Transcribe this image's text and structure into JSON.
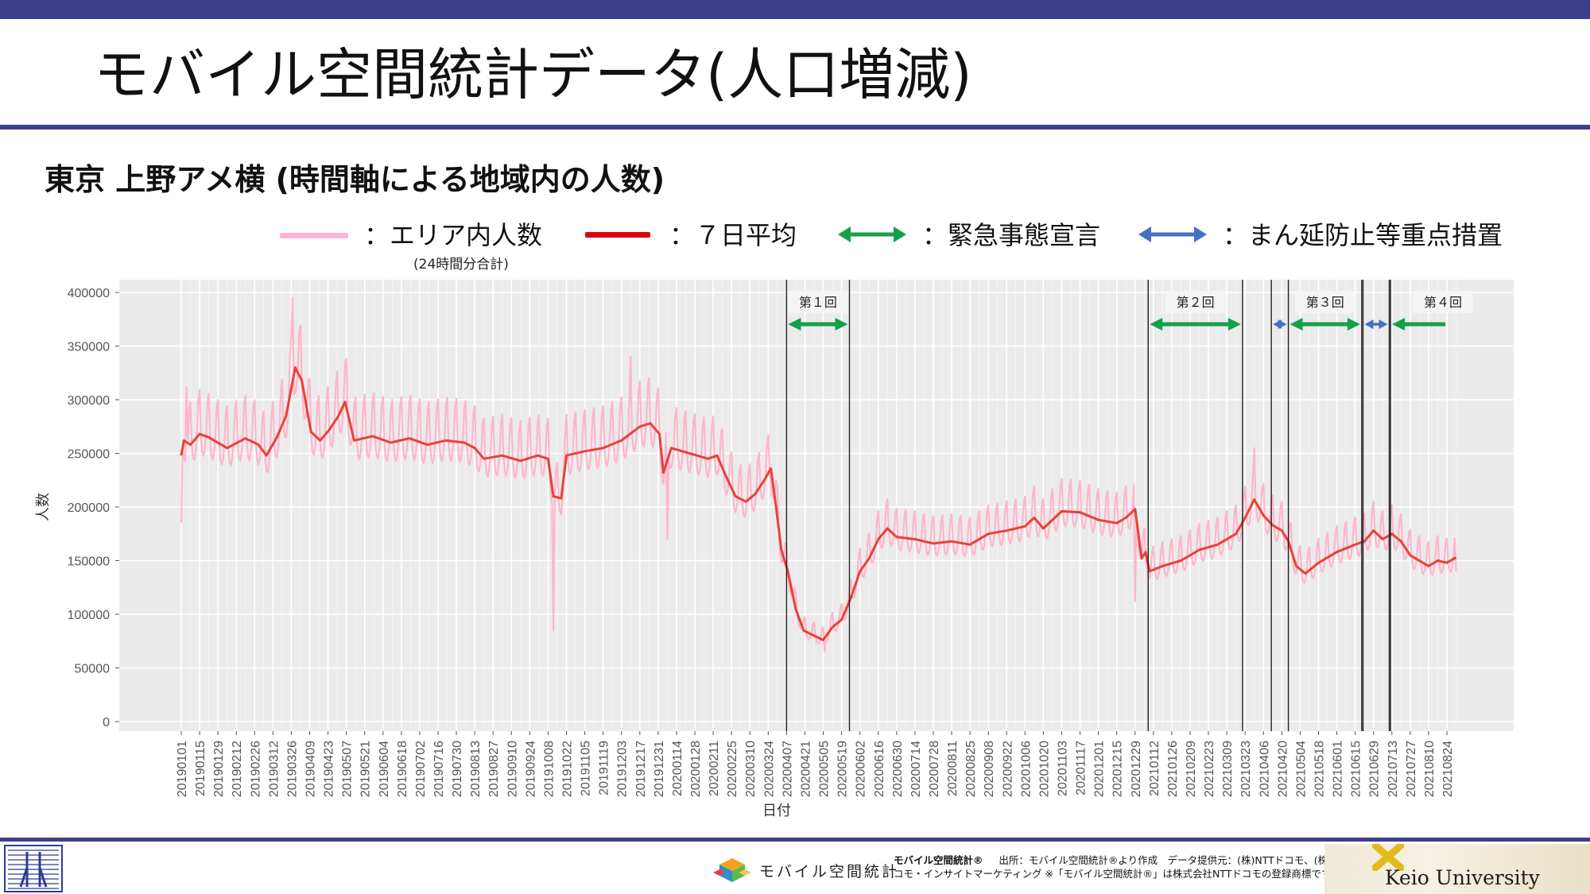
{
  "title": "モバイル空間統計データ(人口増減)",
  "subtitle": "東京 上野アメ横 (時間軸による地域内の人数)",
  "legend": {
    "daily": "：エリア内人数",
    "daily_note": "(24時間分合計)",
    "avg": "：７日平均",
    "emergency": "：緊急事態宣言",
    "semi": "：まん延防止等重点措置"
  },
  "colors": {
    "daily": "#ffb3c8",
    "avg": "#e8413a",
    "emergency": "#14a04a",
    "semi": "#4472c4",
    "panel": "#ebebeb",
    "brand": "#3e3f8a"
  },
  "footer": {
    "brand_text": "モバイル空間統計",
    "note_bold": "モバイル空間統計®",
    "note_line1": "出所：モバイル空間統計®より作成　データ提供元：(株)NTTドコモ、(株)ド",
    "note_line2": "コモ・インサイトマーケティング ※「モバイル空間統計®」は株式会社NTTドコモの登録商標です。",
    "university": "Keio University"
  },
  "chart_data": {
    "type": "line",
    "xlabel": "日付",
    "ylabel": "人数",
    "ylim": [
      0,
      400000
    ],
    "yticks": [
      0,
      50000,
      100000,
      150000,
      200000,
      250000,
      300000,
      350000,
      400000
    ],
    "x_start": "2019-01-01",
    "x_end": "2021-09-01",
    "xticks": [
      "20190101",
      "20190115",
      "20190129",
      "20190212",
      "20190226",
      "20190312",
      "20190326",
      "20190409",
      "20190423",
      "20190507",
      "20190521",
      "20190604",
      "20190618",
      "20190702",
      "20190716",
      "20190730",
      "20190813",
      "20190827",
      "20190910",
      "20190924",
      "20191008",
      "20191022",
      "20191105",
      "20191119",
      "20191203",
      "20191217",
      "20191231",
      "20200114",
      "20200128",
      "20200211",
      "20200225",
      "20200310",
      "20200324",
      "20200407",
      "20200421",
      "20200505",
      "20200519",
      "20200602",
      "20200616",
      "20200630",
      "20200714",
      "20200728",
      "20200811",
      "20200825",
      "20200908",
      "20200922",
      "20201006",
      "20201020",
      "20201103",
      "20201117",
      "20201201",
      "20201215",
      "20201229",
      "20210112",
      "20210126",
      "20210209",
      "20210223",
      "20210309",
      "20210323",
      "20210406",
      "20210420",
      "20210504",
      "20210518",
      "20210601",
      "20210615",
      "20210629",
      "20210713",
      "20210727",
      "20210810",
      "20210824"
    ],
    "grid": true,
    "series": [
      {
        "name": "エリア内人数",
        "style": "daily",
        "values_note": "daily values, weekly cycle approx. avg ±25000",
        "points": [
          [
            "2019-01-01",
            185000
          ],
          [
            "2019-01-05",
            312000
          ],
          [
            "2019-03-27",
            395000
          ],
          [
            "2019-10-12",
            85000
          ],
          [
            "2019-12-10",
            340000
          ],
          [
            "2020-01-07",
            170000
          ],
          [
            "2020-05-06",
            65000
          ],
          [
            "2020-12-29",
            112000
          ],
          [
            "2021-03-30",
            255000
          ],
          [
            "2021-08-31",
            140000
          ]
        ]
      },
      {
        "name": "7日平均",
        "style": "avg",
        "points": [
          [
            "2019-01-01",
            248000
          ],
          [
            "2019-01-03",
            262000
          ],
          [
            "2019-01-08",
            258000
          ],
          [
            "2019-01-15",
            268000
          ],
          [
            "2019-01-22",
            265000
          ],
          [
            "2019-02-05",
            255000
          ],
          [
            "2019-02-19",
            264000
          ],
          [
            "2019-03-01",
            258000
          ],
          [
            "2019-03-07",
            248000
          ],
          [
            "2019-03-15",
            265000
          ],
          [
            "2019-03-22",
            285000
          ],
          [
            "2019-03-29",
            330000
          ],
          [
            "2019-04-03",
            318000
          ],
          [
            "2019-04-10",
            270000
          ],
          [
            "2019-04-17",
            262000
          ],
          [
            "2019-04-24",
            272000
          ],
          [
            "2019-05-01",
            285000
          ],
          [
            "2019-05-06",
            298000
          ],
          [
            "2019-05-13",
            262000
          ],
          [
            "2019-05-27",
            266000
          ],
          [
            "2019-06-10",
            260000
          ],
          [
            "2019-06-24",
            264000
          ],
          [
            "2019-07-08",
            258000
          ],
          [
            "2019-07-22",
            262000
          ],
          [
            "2019-08-05",
            260000
          ],
          [
            "2019-08-13",
            255000
          ],
          [
            "2019-08-20",
            245000
          ],
          [
            "2019-09-03",
            248000
          ],
          [
            "2019-09-17",
            243000
          ],
          [
            "2019-09-30",
            248000
          ],
          [
            "2019-10-08",
            245000
          ],
          [
            "2019-10-12",
            210000
          ],
          [
            "2019-10-18",
            208000
          ],
          [
            "2019-10-22",
            248000
          ],
          [
            "2019-11-05",
            252000
          ],
          [
            "2019-11-19",
            255000
          ],
          [
            "2019-12-03",
            262000
          ],
          [
            "2019-12-17",
            275000
          ],
          [
            "2019-12-25",
            278000
          ],
          [
            "2020-01-01",
            268000
          ],
          [
            "2020-01-04",
            232000
          ],
          [
            "2020-01-10",
            255000
          ],
          [
            "2020-01-24",
            250000
          ],
          [
            "2020-02-07",
            245000
          ],
          [
            "2020-02-14",
            248000
          ],
          [
            "2020-02-21",
            228000
          ],
          [
            "2020-02-28",
            210000
          ],
          [
            "2020-03-07",
            205000
          ],
          [
            "2020-03-14",
            212000
          ],
          [
            "2020-03-21",
            225000
          ],
          [
            "2020-03-26",
            236000
          ],
          [
            "2020-03-30",
            200000
          ],
          [
            "2020-04-03",
            160000
          ],
          [
            "2020-04-08",
            140000
          ],
          [
            "2020-04-14",
            105000
          ],
          [
            "2020-04-20",
            85000
          ],
          [
            "2020-04-28",
            80000
          ],
          [
            "2020-05-05",
            76000
          ],
          [
            "2020-05-12",
            88000
          ],
          [
            "2020-05-19",
            95000
          ],
          [
            "2020-05-26",
            115000
          ],
          [
            "2020-06-02",
            140000
          ],
          [
            "2020-06-09",
            152000
          ],
          [
            "2020-06-16",
            170000
          ],
          [
            "2020-06-23",
            180000
          ],
          [
            "2020-06-30",
            172000
          ],
          [
            "2020-07-14",
            170000
          ],
          [
            "2020-07-28",
            166000
          ],
          [
            "2020-08-11",
            168000
          ],
          [
            "2020-08-25",
            165000
          ],
          [
            "2020-09-08",
            175000
          ],
          [
            "2020-09-22",
            178000
          ],
          [
            "2020-10-06",
            182000
          ],
          [
            "2020-10-13",
            190000
          ],
          [
            "2020-10-20",
            180000
          ],
          [
            "2020-11-03",
            196000
          ],
          [
            "2020-11-17",
            195000
          ],
          [
            "2020-12-01",
            188000
          ],
          [
            "2020-12-15",
            185000
          ],
          [
            "2020-12-22",
            190000
          ],
          [
            "2020-12-29",
            198000
          ],
          [
            "2021-01-03",
            152000
          ],
          [
            "2021-01-06",
            158000
          ],
          [
            "2021-01-09",
            140000
          ],
          [
            "2021-01-19",
            145000
          ],
          [
            "2021-02-02",
            150000
          ],
          [
            "2021-02-16",
            160000
          ],
          [
            "2021-03-02",
            165000
          ],
          [
            "2021-03-16",
            175000
          ],
          [
            "2021-03-23",
            190000
          ],
          [
            "2021-03-30",
            207000
          ],
          [
            "2021-04-06",
            192000
          ],
          [
            "2021-04-13",
            183000
          ],
          [
            "2021-04-20",
            178000
          ],
          [
            "2021-04-25",
            168000
          ],
          [
            "2021-05-01",
            145000
          ],
          [
            "2021-05-08",
            138000
          ],
          [
            "2021-05-18",
            148000
          ],
          [
            "2021-06-01",
            158000
          ],
          [
            "2021-06-15",
            165000
          ],
          [
            "2021-06-22",
            168000
          ],
          [
            "2021-06-29",
            178000
          ],
          [
            "2021-07-06",
            170000
          ],
          [
            "2021-07-13",
            175000
          ],
          [
            "2021-07-20",
            168000
          ],
          [
            "2021-07-27",
            155000
          ],
          [
            "2021-08-10",
            145000
          ],
          [
            "2021-08-17",
            150000
          ],
          [
            "2021-08-24",
            148000
          ],
          [
            "2021-08-31",
            153000
          ]
        ]
      }
    ],
    "events": [
      {
        "label": "第１回",
        "kind": "emergency",
        "start": "2020-04-07",
        "end": "2020-05-25"
      },
      {
        "label": "第２回",
        "kind": "emergency",
        "start": "2021-01-08",
        "end": "2021-03-21"
      },
      {
        "label": "",
        "kind": "semi",
        "start": "2021-04-12",
        "end": "2021-04-25"
      },
      {
        "label": "第３回",
        "kind": "emergency",
        "start": "2021-04-25",
        "end": "2021-06-20"
      },
      {
        "label": "",
        "kind": "semi",
        "start": "2021-06-21",
        "end": "2021-07-11"
      },
      {
        "label": "第４回",
        "kind": "emergency",
        "start": "2021-07-12",
        "end": "2021-09-12"
      }
    ]
  }
}
